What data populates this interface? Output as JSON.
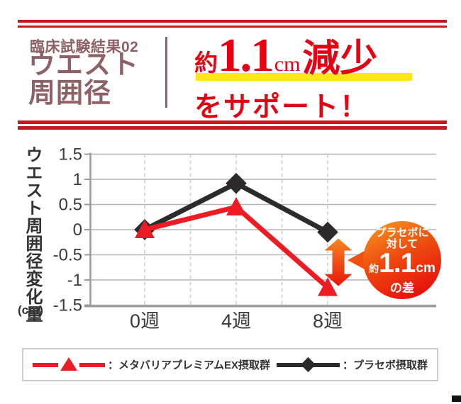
{
  "header": {
    "subtitle": "臨床試験結果02",
    "title_line1": "ウエスト",
    "title_line2": "周囲径",
    "headline": {
      "prefix": "約",
      "value": "1.1",
      "unit": "cm",
      "suffix": "減少",
      "line2": "をサポート！"
    },
    "accent_red": "#e50012",
    "rule_red": "#c8161e",
    "title_color": "#8d6165",
    "underline_yellow": "#ffe61a"
  },
  "chart_data": {
    "type": "line",
    "title": "",
    "ylabel": "ウエスト周囲径変化量",
    "ylabel_unit": "(cm)",
    "categories": [
      "0週",
      "4週",
      "8週"
    ],
    "ylim": [
      -1.5,
      1.5
    ],
    "yticks": [
      1.5,
      1,
      0.5,
      0,
      -0.5,
      -1,
      -1.5
    ],
    "ytick_labels": [
      "1.5",
      "1",
      "0.5",
      "0",
      "-0.5",
      "-1",
      "-1.5"
    ],
    "grid": "horizontal solid gray; vertical dashed gray at 2-week intervals",
    "legend_position": "bottom",
    "series": [
      {
        "name": "メタバリアプレミアムEX摂取群",
        "color": "#ed1c24",
        "marker": "triangle",
        "values": [
          0,
          0.45,
          -1.15
        ]
      },
      {
        "name": "プラセボ摂取群",
        "color": "#2d2a2b",
        "marker": "diamond",
        "values": [
          0,
          0.92,
          -0.05
        ]
      }
    ],
    "annotation": {
      "line1": "プラセボに",
      "line2": "対して",
      "value_prefix": "約",
      "value": "1.1",
      "unit": "cm",
      "suffix": "の差",
      "arrow_week": "8週",
      "arrow_colors": [
        "#f8871f",
        "#e8150b"
      ],
      "badge_colors": [
        "#f8921f",
        "#e60d0e"
      ]
    }
  },
  "legend": {
    "items": [
      {
        "label": "：メタバリアプレミアムEX摂取群",
        "series": "メタバリアプレミアムEX摂取群"
      },
      {
        "label": "：プラセボ摂取群",
        "series": "プラセボ摂取群"
      }
    ]
  }
}
